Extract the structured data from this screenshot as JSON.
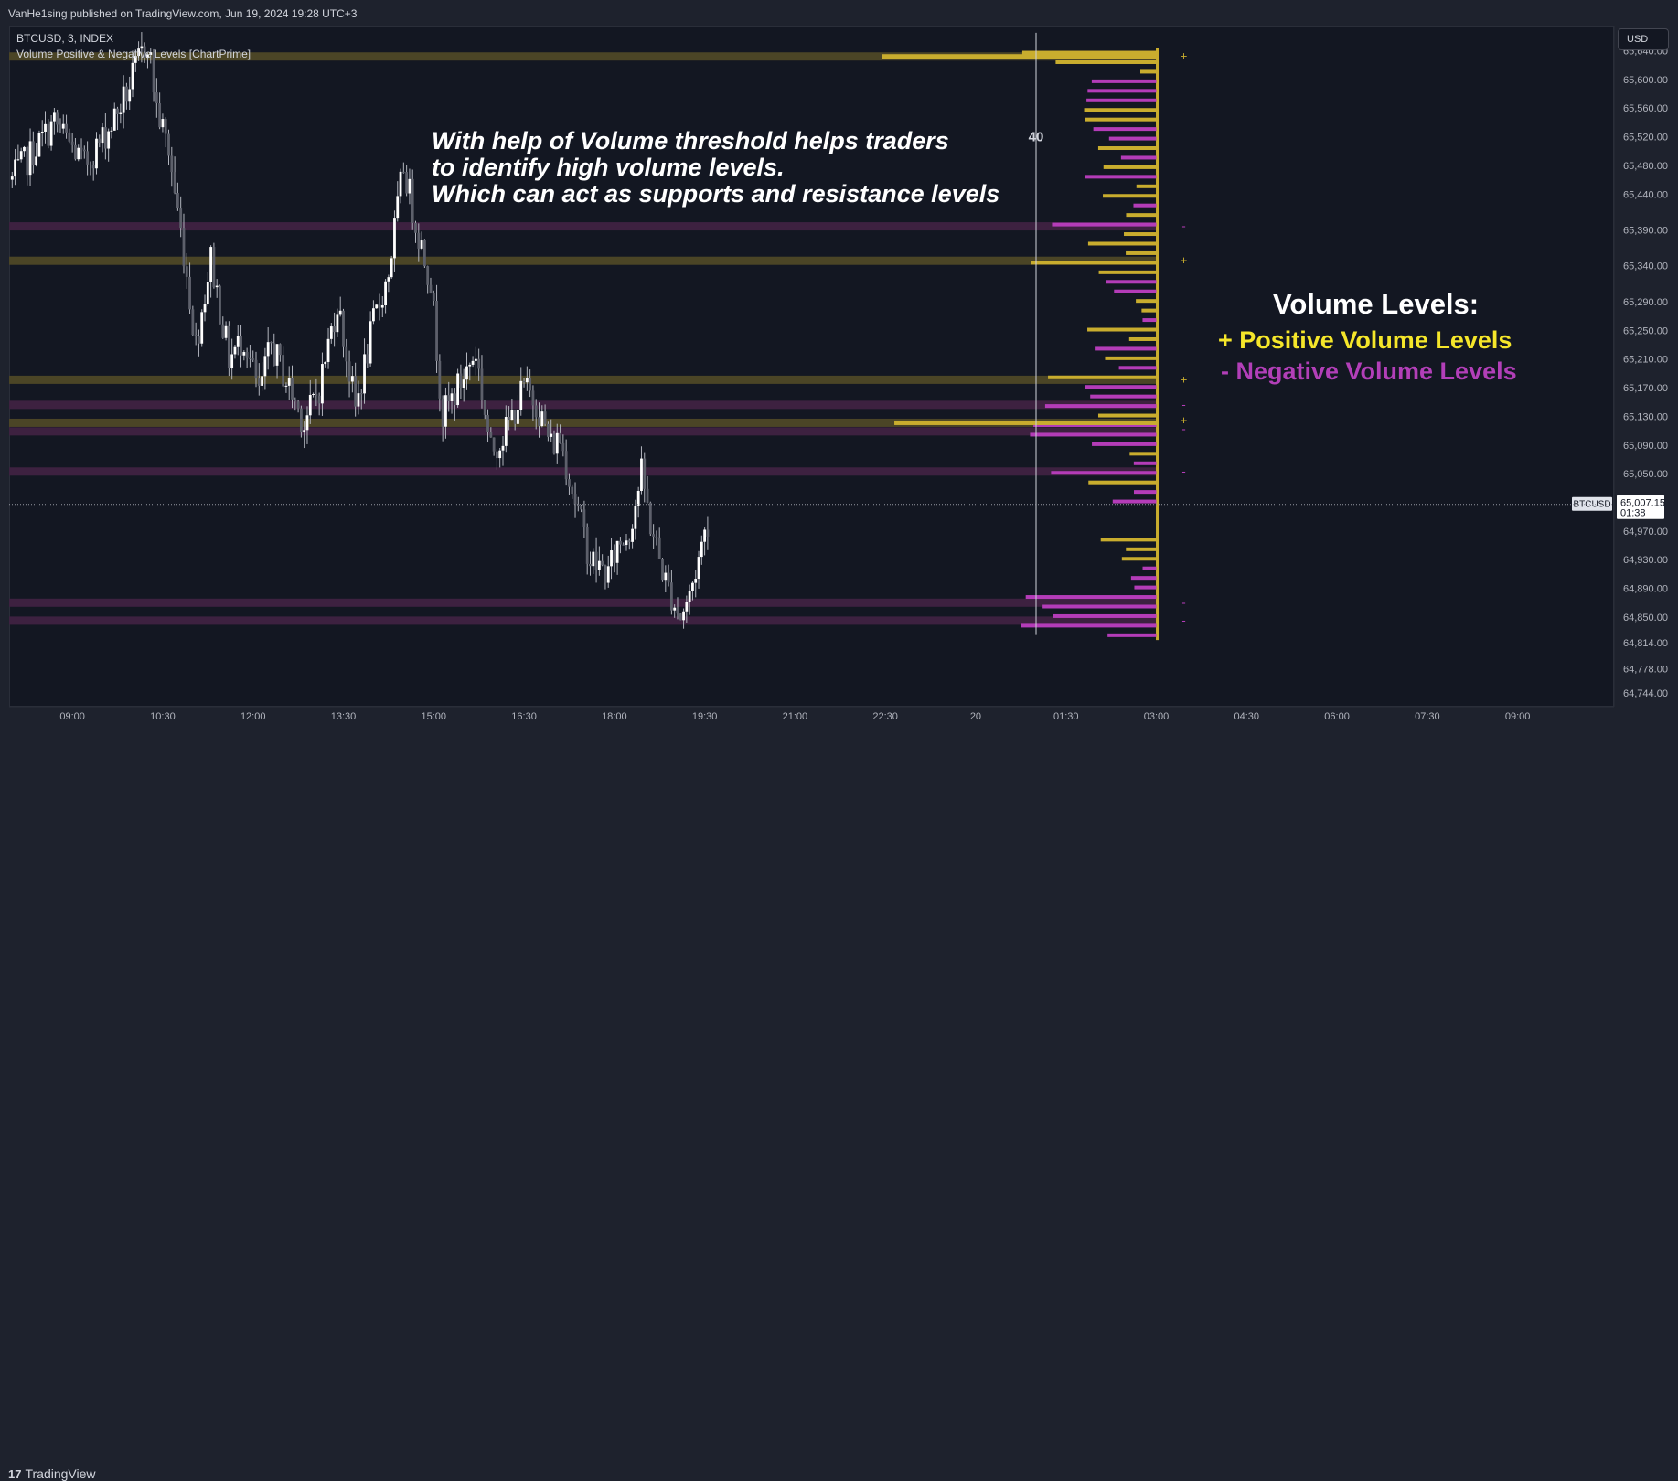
{
  "header": {
    "publisher": "VanHe1sing published on TradingView.com, Jun 19, 2024 19:28 UTC+3"
  },
  "legend": {
    "symbol": "BTCUSD, 3, INDEX",
    "indicator": "Volume Positive & Negative Levels [ChartPrime]"
  },
  "currency_button": "USD",
  "annotation": [
    "With help of Volume threshold helps traders",
    "to identify high volume levels.",
    "Which can act as supports and resistance levels"
  ],
  "volume_levels": {
    "title": "Volume Levels:",
    "positive": "+ Positive Volume Levels",
    "negative": "- Negative Volume Levels"
  },
  "colors": {
    "positive": "#c9ad2e",
    "negative": "#b43cb8",
    "positive_band": "#4b4526",
    "negative_band": "#3d2140",
    "background": "#131722",
    "candle": "#ffffff"
  },
  "threshold_label": "40",
  "footer": {
    "brand": "TradingView",
    "brand_icon": "tradingview-logo-icon"
  },
  "chart_data": {
    "type": "candlestick",
    "symbol": "BTCUSD",
    "timeframe": "3",
    "ylim": [
      64725,
      65675
    ],
    "xlim": [
      7.95,
      34.6
    ],
    "y_ticks": [
      "65,640.00",
      "65,600.00",
      "65,560.00",
      "65,520.00",
      "65,480.00",
      "65,440.00",
      "65,390.00",
      "65,340.00",
      "65,290.00",
      "65,250.00",
      "65,210.00",
      "65,170.00",
      "65,130.00",
      "65,090.00",
      "65,050.00",
      "65,007.15",
      "64,970.00",
      "64,930.00",
      "64,890.00",
      "64,850.00",
      "64,814.00",
      "64,778.00",
      "64,744.00"
    ],
    "x_tick_labels": [
      "09:00",
      "10:30",
      "12:00",
      "13:30",
      "15:00",
      "16:30",
      "18:00",
      "19:30",
      "21:00",
      "22:30",
      "20",
      "01:30",
      "03:00",
      "04:30",
      "06:00",
      "07:30",
      "09:00"
    ],
    "x_tick_hours": [
      9,
      10.5,
      12,
      13.5,
      15,
      16.5,
      18,
      19.5,
      21,
      22.5,
      24,
      25.5,
      27,
      28.5,
      30,
      31.5,
      33
    ],
    "current_price": {
      "symbol": "BTCUSD",
      "price": "65,007.15",
      "countdown": "01:38",
      "value": 65007.15
    },
    "close_path": [
      [
        8.0,
        65460
      ],
      [
        8.7,
        65540
      ],
      [
        9.2,
        65480
      ],
      [
        9.6,
        65530
      ],
      [
        9.9,
        65580
      ],
      [
        10.1,
        65625
      ],
      [
        10.25,
        65655
      ],
      [
        10.4,
        65560
      ],
      [
        10.6,
        65500
      ],
      [
        10.85,
        65360
      ],
      [
        11.05,
        65230
      ],
      [
        11.3,
        65350
      ],
      [
        11.6,
        65210
      ],
      [
        11.85,
        65240
      ],
      [
        12.1,
        65160
      ],
      [
        12.3,
        65230
      ],
      [
        12.6,
        65170
      ],
      [
        12.85,
        65120
      ],
      [
        13.1,
        65170
      ],
      [
        13.4,
        65290
      ],
      [
        13.7,
        65140
      ],
      [
        14.0,
        65260
      ],
      [
        14.25,
        65330
      ],
      [
        14.5,
        65480
      ],
      [
        14.7,
        65400
      ],
      [
        14.95,
        65320
      ],
      [
        15.15,
        65130
      ],
      [
        15.4,
        65170
      ],
      [
        15.7,
        65220
      ],
      [
        15.95,
        65080
      ],
      [
        16.2,
        65110
      ],
      [
        16.5,
        65170
      ],
      [
        16.7,
        65150
      ],
      [
        16.95,
        65090
      ],
      [
        17.1,
        65100
      ],
      [
        17.3,
        65030
      ],
      [
        17.6,
        64930
      ],
      [
        17.9,
        64910
      ],
      [
        18.05,
        64950
      ],
      [
        18.25,
        64970
      ],
      [
        18.45,
        65050
      ],
      [
        18.6,
        64980
      ],
      [
        18.85,
        64900
      ],
      [
        19.1,
        64850
      ],
      [
        19.25,
        64880
      ],
      [
        19.45,
        64950
      ],
      [
        19.6,
        65000
      ]
    ],
    "volume_levels": [
      {
        "price": 65632,
        "side": "positive",
        "band_start_hour": 8.0,
        "bar_length": 0.0
      },
      {
        "price": 65395,
        "side": "negative",
        "band_start_hour": 8.0,
        "bar_length": 0.0
      },
      {
        "price": 65347,
        "side": "positive",
        "band_start_hour": 8.0,
        "bar_length": 0.0
      },
      {
        "price": 65181,
        "side": "positive",
        "band_start_hour": 8.0,
        "bar_length": 0.0
      },
      {
        "price": 65146,
        "side": "negative",
        "band_start_hour": 8.0,
        "bar_length": 0.0
      },
      {
        "price": 65121,
        "side": "positive",
        "band_start_hour": 8.0,
        "bar_length": 0.0
      },
      {
        "price": 65109,
        "side": "negative",
        "band_start_hour": 8.0,
        "bar_length": 0.0
      },
      {
        "price": 65053,
        "side": "negative",
        "band_start_hour": 8.0,
        "bar_length": 0.0
      },
      {
        "price": 64870,
        "side": "negative",
        "band_start_hour": 8.0,
        "bar_length": 0.0
      },
      {
        "price": 64845,
        "side": "negative",
        "band_start_hour": 8.0,
        "bar_length": 0.0
      }
    ],
    "level_signs": [
      {
        "price": 65632,
        "sign": "+"
      },
      {
        "price": 65395,
        "sign": "-"
      },
      {
        "price": 65347,
        "sign": "+"
      },
      {
        "price": 65181,
        "sign": "+"
      },
      {
        "price": 65146,
        "sign": "-"
      },
      {
        "price": 65124,
        "sign": "+"
      },
      {
        "price": 65112,
        "sign": "-"
      },
      {
        "price": 65053,
        "sign": "-"
      },
      {
        "price": 64870,
        "sign": "-"
      },
      {
        "price": 64845,
        "sign": "-"
      }
    ],
    "profile_baseline_hour": 27.0
  }
}
